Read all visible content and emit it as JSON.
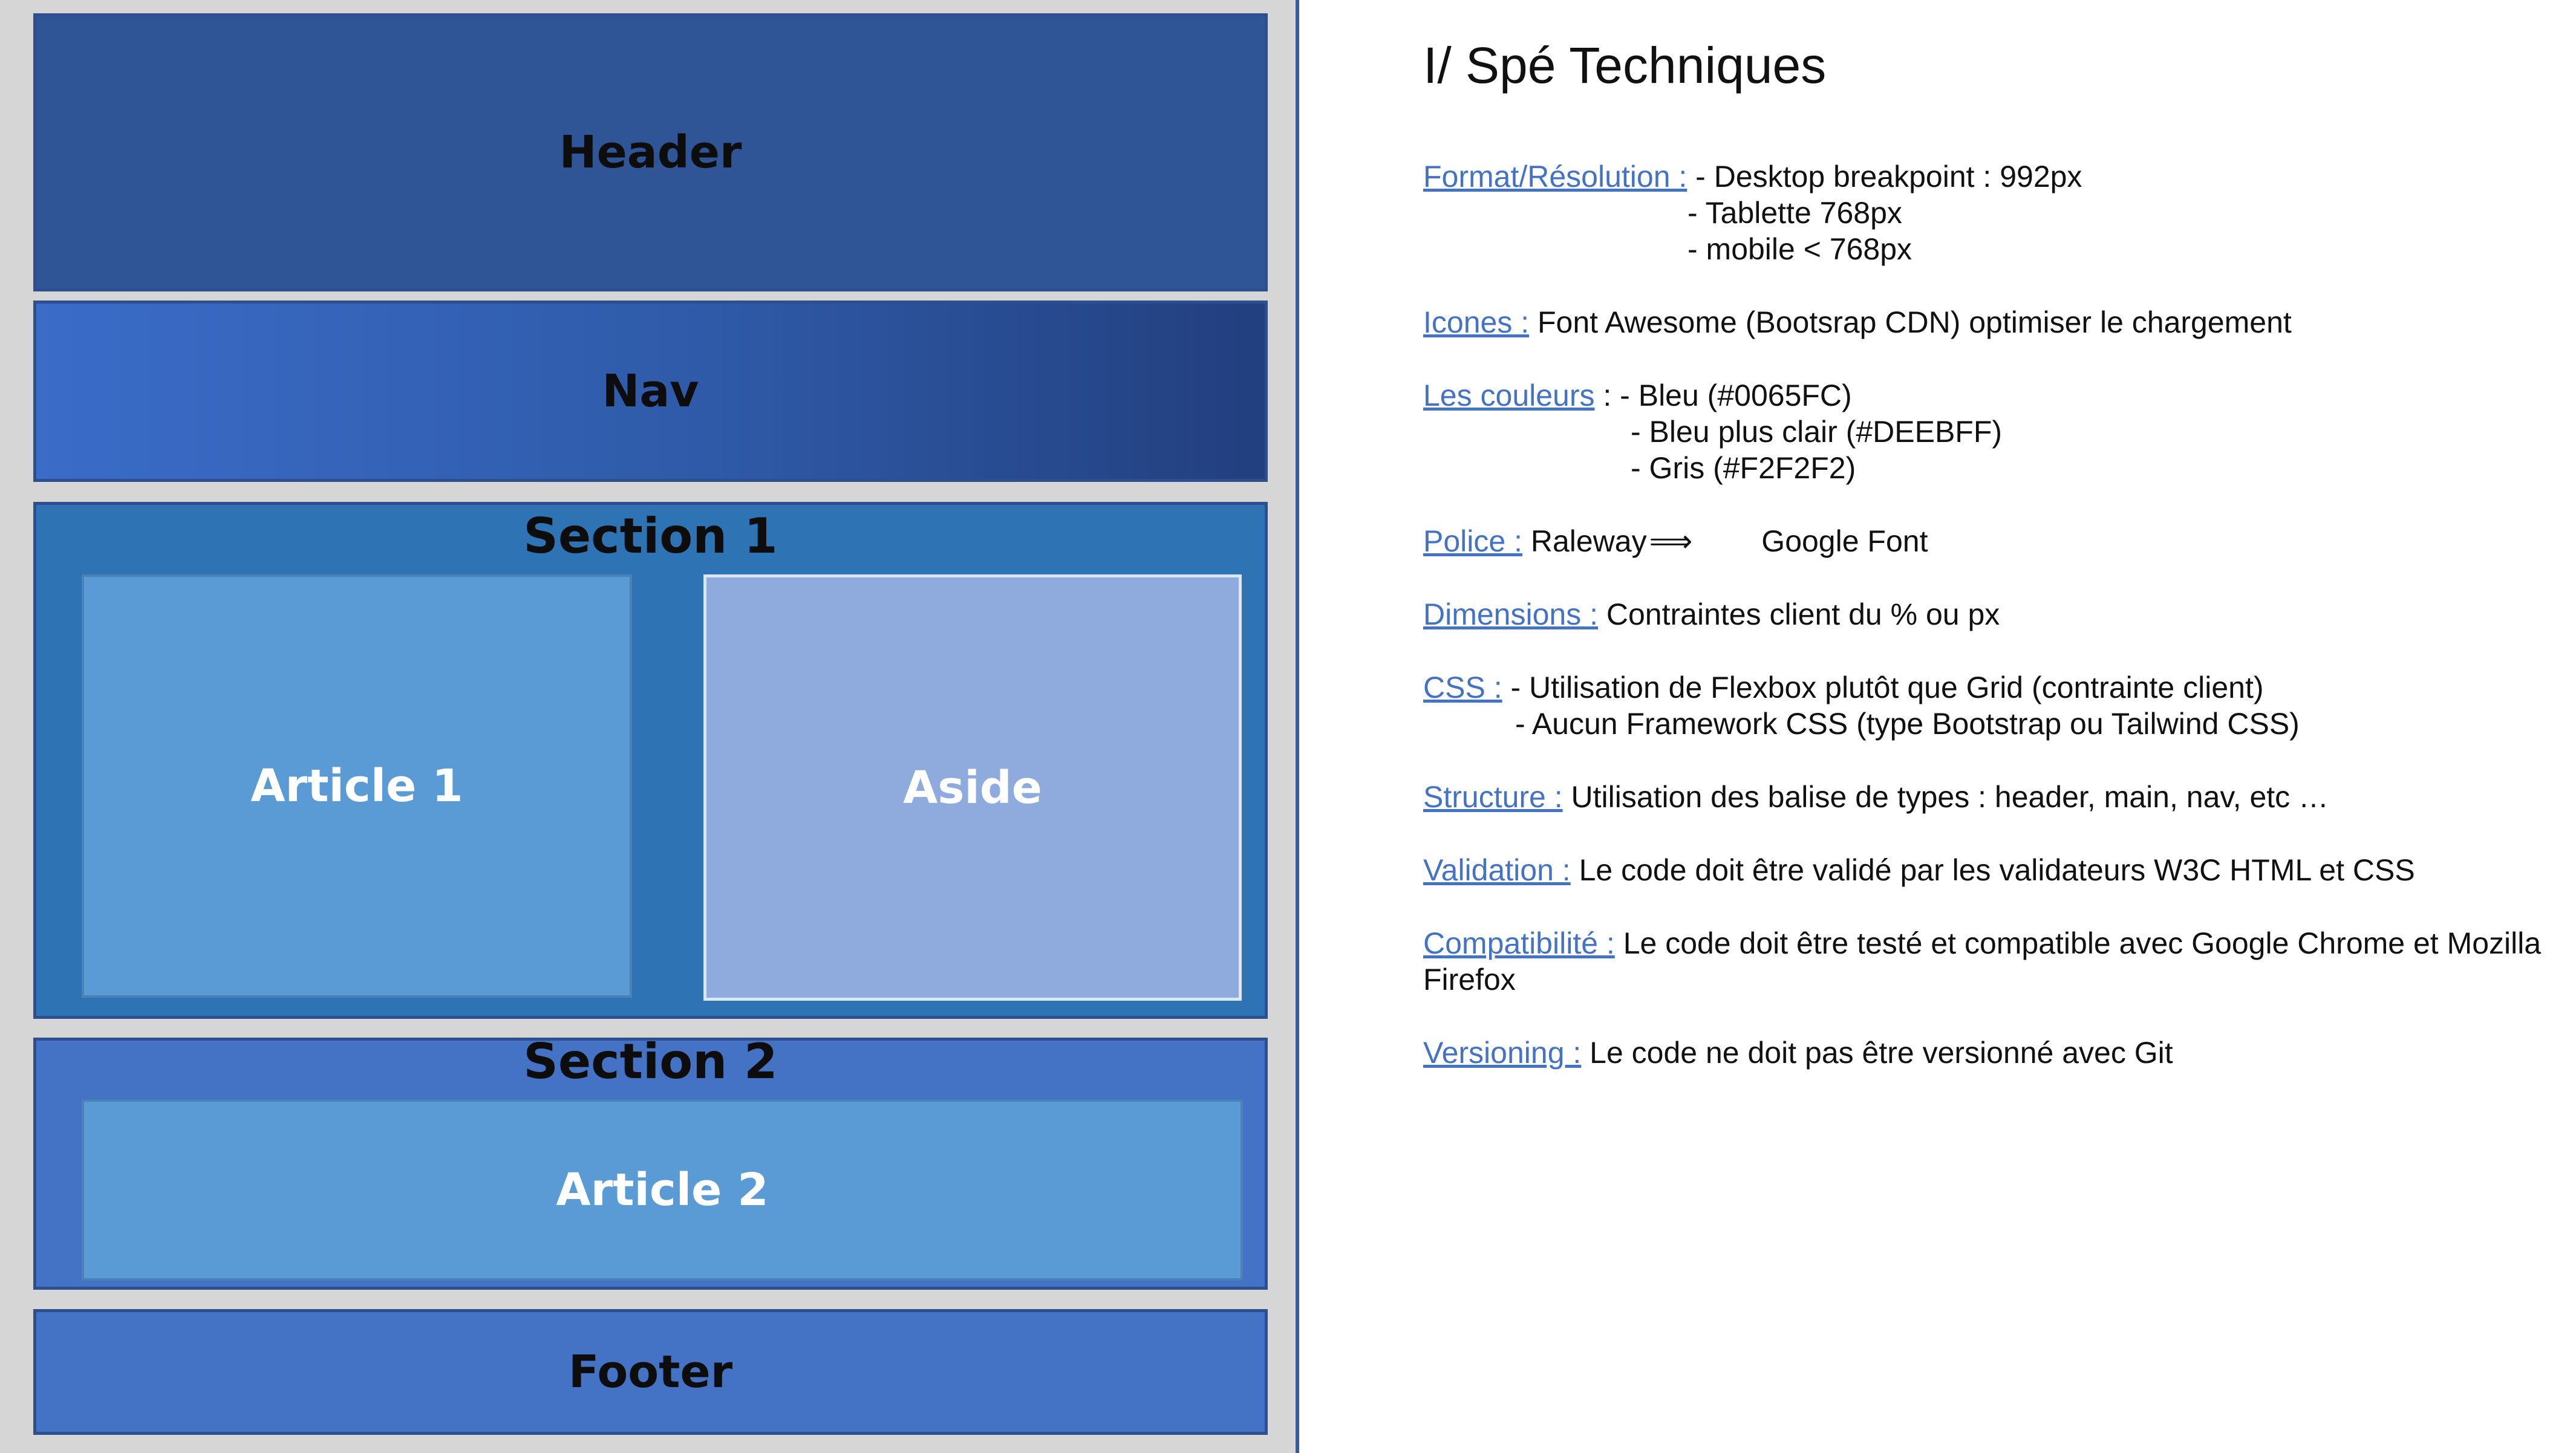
{
  "wireframe": {
    "header_label": "Header",
    "nav_label": "Nav",
    "section1_label": "Section 1",
    "article1_label": "Article 1",
    "aside_label": "Aside",
    "section2_label": "Section 2",
    "article2_label": "Article 2",
    "footer_label": "Footer"
  },
  "spec": {
    "title": "I/ Spé Techniques",
    "format": {
      "label": "Format/Résolution :",
      "line1": " - Desktop breakpoint : 992px",
      "line2": "- Tablette 768px",
      "line3": "- mobile < 768px"
    },
    "icones": {
      "label": "Icones :",
      "text": "  Font Awesome (Bootsrap CDN) optimiser le chargement"
    },
    "couleurs": {
      "label": "Les couleurs",
      "line1": " : - Bleu (#0065FC)",
      "line2": "- Bleu plus clair (#DEEBFF)",
      "line3": "- Gris (#F2F2F2)"
    },
    "police": {
      "label": "Police :",
      "text_before": " Raleway",
      "arrow": "⟹",
      "text_after": "Google Font"
    },
    "dimensions": {
      "label": "Dimensions :",
      "text": " Contraintes client du % ou px"
    },
    "css": {
      "label": "CSS :",
      "line1": "  - Utilisation de Flexbox plutôt que Grid (contrainte client)",
      "line2": "- Aucun Framework CSS (type Bootstrap ou Tailwind CSS)"
    },
    "structure": {
      "label": "Structure :",
      "text": " Utilisation des balise de types : header, main, nav, etc …"
    },
    "validation": {
      "label": "Validation :",
      "text": " Le code doit être validé par les validateurs W3C HTML et CSS"
    },
    "compatibilite": {
      "label": "Compatibilité :",
      "line1": " Le code doit être testé et compatible avec Google Chrome et Mozilla",
      "line2": "Firefox"
    },
    "versioning": {
      "label": "Versioning :",
      "text": " Le code ne doit pas être versionné avec Git"
    }
  }
}
